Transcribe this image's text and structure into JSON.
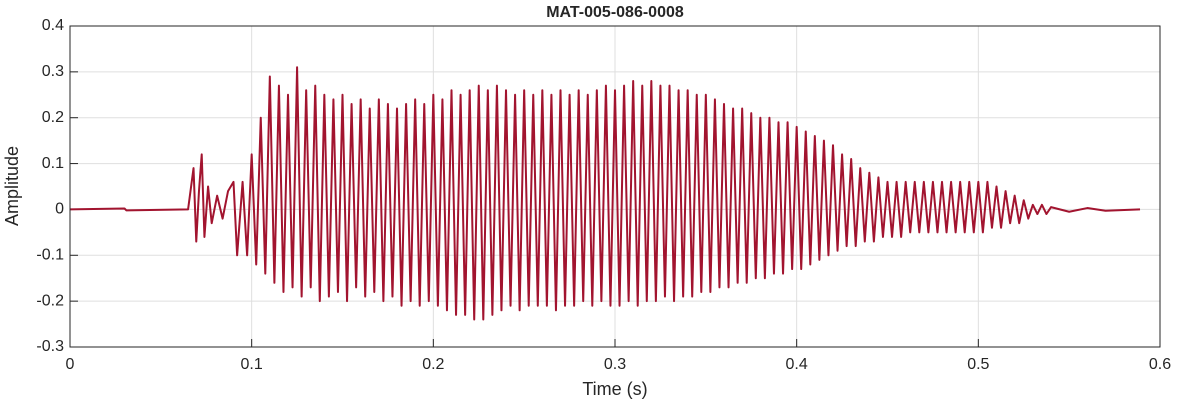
{
  "chart_data": {
    "type": "line",
    "title": "MAT-005-086-0008",
    "x_label": "Time (s)",
    "y_label": "Amplitude",
    "xlim": [
      0,
      0.6
    ],
    "ylim": [
      -0.3,
      0.4
    ],
    "xticks": [
      0,
      0.1,
      0.2,
      0.3,
      0.4,
      0.5,
      0.6
    ],
    "yticks": [
      -0.3,
      -0.2,
      -0.1,
      0,
      0.1,
      0.2,
      0.3,
      0.4
    ],
    "grid": true,
    "series": [
      {
        "color": "#a2142f",
        "x": [
          0,
          0.03,
          0.031,
          0.065,
          0.068,
          0.0695,
          0.071,
          0.0725,
          0.074,
          0.076,
          0.078,
          0.081,
          0.084,
          0.087,
          0.09,
          0.092,
          0.095,
          0.0975,
          0.1,
          0.1025,
          0.105,
          0.1075,
          0.11,
          0.1125,
          0.115,
          0.1175,
          0.12,
          0.1225,
          0.125,
          0.1275,
          0.13,
          0.1325,
          0.135,
          0.1375,
          0.14,
          0.1425,
          0.145,
          0.1475,
          0.15,
          0.1525,
          0.155,
          0.1575,
          0.16,
          0.1625,
          0.165,
          0.1675,
          0.17,
          0.1725,
          0.175,
          0.1775,
          0.18,
          0.1825,
          0.185,
          0.1875,
          0.19,
          0.1925,
          0.195,
          0.1975,
          0.2,
          0.2025,
          0.205,
          0.2075,
          0.21,
          0.2125,
          0.215,
          0.2175,
          0.22,
          0.2225,
          0.225,
          0.2275,
          0.23,
          0.2325,
          0.235,
          0.2375,
          0.24,
          0.2425,
          0.245,
          0.2475,
          0.25,
          0.2525,
          0.255,
          0.2575,
          0.26,
          0.2625,
          0.265,
          0.2675,
          0.27,
          0.2725,
          0.275,
          0.2775,
          0.28,
          0.2825,
          0.285,
          0.2875,
          0.29,
          0.2925,
          0.295,
          0.2975,
          0.3,
          0.3025,
          0.305,
          0.3075,
          0.31,
          0.3125,
          0.315,
          0.3175,
          0.32,
          0.3225,
          0.325,
          0.3275,
          0.33,
          0.3325,
          0.335,
          0.3375,
          0.34,
          0.3425,
          0.345,
          0.3475,
          0.35,
          0.3525,
          0.355,
          0.3575,
          0.36,
          0.3625,
          0.365,
          0.3675,
          0.37,
          0.3725,
          0.375,
          0.3775,
          0.38,
          0.3825,
          0.385,
          0.3875,
          0.39,
          0.3925,
          0.395,
          0.3975,
          0.4,
          0.4025,
          0.405,
          0.4075,
          0.41,
          0.4125,
          0.415,
          0.4175,
          0.42,
          0.4225,
          0.425,
          0.4275,
          0.43,
          0.4325,
          0.435,
          0.4375,
          0.44,
          0.4425,
          0.445,
          0.4475,
          0.45,
          0.4525,
          0.455,
          0.4575,
          0.46,
          0.4625,
          0.465,
          0.4675,
          0.47,
          0.4725,
          0.475,
          0.4775,
          0.48,
          0.4825,
          0.485,
          0.4875,
          0.49,
          0.4925,
          0.495,
          0.4975,
          0.5,
          0.5025,
          0.505,
          0.5075,
          0.51,
          0.5125,
          0.515,
          0.5175,
          0.52,
          0.5225,
          0.525,
          0.5275,
          0.53,
          0.5325,
          0.535,
          0.5375,
          0.54,
          0.55,
          0.56,
          0.57,
          0.589
        ],
        "values": [
          0,
          0.002,
          -0.002,
          0,
          0.09,
          -0.07,
          0.04,
          0.12,
          -0.06,
          0.05,
          -0.03,
          0.03,
          -0.02,
          0.04,
          0.06,
          -0.1,
          0.06,
          -0.1,
          0.12,
          -0.12,
          0.2,
          -0.14,
          0.29,
          -0.16,
          0.27,
          -0.18,
          0.25,
          -0.17,
          0.31,
          -0.19,
          0.26,
          -0.17,
          0.27,
          -0.2,
          0.25,
          -0.19,
          0.24,
          -0.18,
          0.25,
          -0.2,
          0.23,
          -0.17,
          0.24,
          -0.19,
          0.22,
          -0.18,
          0.24,
          -0.2,
          0.23,
          -0.19,
          0.22,
          -0.21,
          0.23,
          -0.2,
          0.24,
          -0.21,
          0.23,
          -0.2,
          0.25,
          -0.21,
          0.24,
          -0.22,
          0.26,
          -0.23,
          0.25,
          -0.23,
          0.26,
          -0.24,
          0.27,
          -0.24,
          0.26,
          -0.23,
          0.27,
          -0.22,
          0.26,
          -0.21,
          0.25,
          -0.22,
          0.26,
          -0.21,
          0.25,
          -0.21,
          0.26,
          -0.21,
          0.25,
          -0.22,
          0.26,
          -0.21,
          0.25,
          -0.21,
          0.26,
          -0.2,
          0.25,
          -0.21,
          0.26,
          -0.2,
          0.27,
          -0.21,
          0.26,
          -0.21,
          0.27,
          -0.2,
          0.28,
          -0.21,
          0.27,
          -0.2,
          0.28,
          -0.2,
          0.27,
          -0.19,
          0.27,
          -0.2,
          0.26,
          -0.19,
          0.26,
          -0.19,
          0.25,
          -0.18,
          0.25,
          -0.18,
          0.24,
          -0.17,
          0.23,
          -0.17,
          0.22,
          -0.16,
          0.22,
          -0.16,
          0.21,
          -0.15,
          0.2,
          -0.15,
          0.2,
          -0.14,
          0.19,
          -0.14,
          0.19,
          -0.13,
          0.18,
          -0.13,
          0.17,
          -0.12,
          0.16,
          -0.11,
          0.15,
          -0.1,
          0.14,
          -0.09,
          0.12,
          -0.08,
          0.11,
          -0.08,
          0.09,
          -0.07,
          0.08,
          -0.07,
          0.07,
          -0.06,
          0.06,
          -0.06,
          0.06,
          -0.06,
          0.06,
          -0.05,
          0.06,
          -0.05,
          0.06,
          -0.05,
          0.06,
          -0.05,
          0.06,
          -0.05,
          0.06,
          -0.05,
          0.06,
          -0.05,
          0.06,
          -0.05,
          0.06,
          -0.05,
          0.06,
          -0.04,
          0.05,
          -0.04,
          0.04,
          -0.03,
          0.03,
          -0.03,
          0.02,
          -0.02,
          0.01,
          -0.01,
          0.01,
          -0.01,
          0.005,
          -0.005,
          0.003,
          -0.003,
          0
        ]
      }
    ]
  }
}
